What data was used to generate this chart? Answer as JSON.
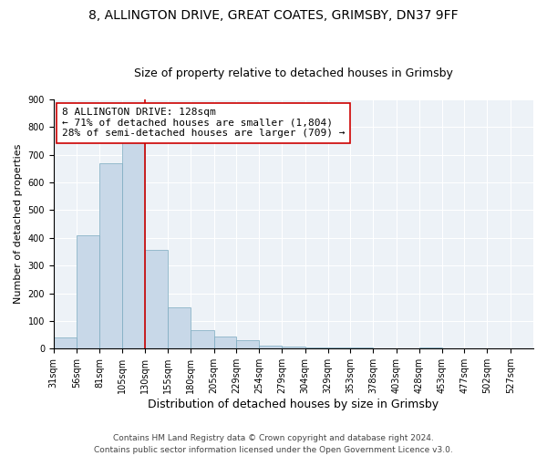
{
  "title1": "8, ALLINGTON DRIVE, GREAT COATES, GRIMSBY, DN37 9FF",
  "title2": "Size of property relative to detached houses in Grimsby",
  "xlabel": "Distribution of detached houses by size in Grimsby",
  "ylabel": "Number of detached properties",
  "bin_labels": [
    "31sqm",
    "56sqm",
    "81sqm",
    "105sqm",
    "130sqm",
    "155sqm",
    "180sqm",
    "205sqm",
    "229sqm",
    "254sqm",
    "279sqm",
    "304sqm",
    "329sqm",
    "353sqm",
    "378sqm",
    "403sqm",
    "428sqm",
    "453sqm",
    "477sqm",
    "502sqm",
    "527sqm"
  ],
  "bar_heights": [
    40,
    410,
    670,
    750,
    355,
    148,
    68,
    45,
    30,
    12,
    6,
    4,
    3,
    3,
    2,
    1,
    4,
    1,
    1,
    1,
    0
  ],
  "bar_color": "#c8d8e8",
  "bar_edge_color": "#7aaabf",
  "vline_x": 130,
  "vline_color": "#cc0000",
  "bin_edges": [
    31,
    56,
    81,
    105,
    130,
    155,
    180,
    205,
    229,
    254,
    279,
    304,
    329,
    353,
    378,
    403,
    428,
    453,
    477,
    502,
    527
  ],
  "annotation_text": "8 ALLINGTON DRIVE: 128sqm\n← 71% of detached houses are smaller (1,804)\n28% of semi-detached houses are larger (709) →",
  "annotation_box_color": "#ffffff",
  "annotation_box_edge": "#cc0000",
  "ylim": [
    0,
    900
  ],
  "yticks": [
    0,
    100,
    200,
    300,
    400,
    500,
    600,
    700,
    800,
    900
  ],
  "bg_color": "#edf2f7",
  "footnote": "Contains HM Land Registry data © Crown copyright and database right 2024.\nContains public sector information licensed under the Open Government Licence v3.0.",
  "title1_fontsize": 10,
  "title2_fontsize": 9,
  "xlabel_fontsize": 9,
  "ylabel_fontsize": 8,
  "tick_fontsize": 7,
  "annot_fontsize": 8,
  "footnote_fontsize": 6.5
}
